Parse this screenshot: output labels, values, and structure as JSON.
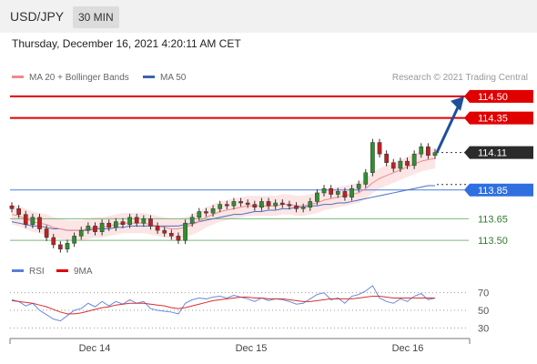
{
  "header": {
    "symbol": "USD/JPY",
    "timeframe": "30 MIN"
  },
  "timestamp": "Thursday, December 16, 2021 4:20:11 AM CET",
  "legend": {
    "ma20_label": "MA 20 + Bollinger Bands",
    "ma50_label": "MA 50"
  },
  "rsi_legend": {
    "rsi_label": "RSI",
    "ma_label": "9MA"
  },
  "credit": "Research © 2021 Trading Central",
  "colors": {
    "resistance": "#e00000",
    "support": "#4a7fe0",
    "target": "#1f4f9a",
    "ma20": "#f08a8a",
    "ma50": "#4a6fc0",
    "levels_green": "#7ab87a",
    "bands": "#fbe0e0"
  },
  "chart_data": {
    "type": "line",
    "price_levels": [
      {
        "value": 114.5,
        "label": "114.50",
        "kind": "resistance"
      },
      {
        "value": 114.35,
        "label": "114.35",
        "kind": "resistance"
      },
      {
        "value": 114.11,
        "label": "114.11",
        "kind": "last_price"
      },
      {
        "value": 113.85,
        "label": "113.85",
        "kind": "pivot"
      },
      {
        "value": 113.65,
        "label": "113.65",
        "kind": "support"
      },
      {
        "value": 113.5,
        "label": "113.50",
        "kind": "support"
      }
    ],
    "x_ticks": [
      "Dec 14",
      "Dec 15",
      "Dec 16"
    ],
    "price_range": [
      113.4,
      114.55
    ],
    "price_series": {
      "name": "Close",
      "values": [
        113.72,
        113.68,
        113.61,
        113.66,
        113.58,
        113.52,
        113.47,
        113.44,
        113.48,
        113.53,
        113.57,
        113.6,
        113.56,
        113.62,
        113.59,
        113.63,
        113.61,
        113.66,
        113.62,
        113.65,
        113.6,
        113.57,
        113.55,
        113.53,
        113.5,
        113.62,
        113.66,
        113.7,
        113.69,
        113.72,
        113.75,
        113.74,
        113.77,
        113.76,
        113.75,
        113.73,
        113.77,
        113.74,
        113.76,
        113.75,
        113.74,
        113.72,
        113.73,
        113.77,
        113.83,
        113.86,
        113.82,
        113.84,
        113.8,
        113.86,
        113.89,
        113.97,
        114.18,
        114.1,
        114.04,
        114.0,
        114.05,
        114.02,
        114.1,
        114.15,
        114.09,
        114.11
      ]
    },
    "ma20": [
      113.68,
      113.67,
      113.65,
      113.63,
      113.62,
      113.61,
      113.59,
      113.58,
      113.57,
      113.57,
      113.57,
      113.58,
      113.59,
      113.59,
      113.6,
      113.61,
      113.62,
      113.62,
      113.62,
      113.62,
      113.61,
      113.6,
      113.59,
      113.58,
      113.58,
      113.59,
      113.61,
      113.63,
      113.66,
      113.68,
      113.7,
      113.71,
      113.72,
      113.73,
      113.74,
      113.74,
      113.74,
      113.74,
      113.74,
      113.75,
      113.75,
      113.74,
      113.74,
      113.75,
      113.76,
      113.78,
      113.79,
      113.8,
      113.81,
      113.82,
      113.83,
      113.86,
      113.9,
      113.93,
      113.95,
      113.97,
      113.99,
      114.01,
      114.03,
      114.05,
      114.06,
      114.07
    ],
    "ma50": [
      113.63,
      113.62,
      113.61,
      113.6,
      113.6,
      113.59,
      113.58,
      113.58,
      113.57,
      113.57,
      113.57,
      113.57,
      113.58,
      113.58,
      113.58,
      113.59,
      113.59,
      113.6,
      113.6,
      113.6,
      113.6,
      113.6,
      113.6,
      113.6,
      113.6,
      113.61,
      113.62,
      113.63,
      113.64,
      113.65,
      113.66,
      113.67,
      113.68,
      113.68,
      113.69,
      113.7,
      113.7,
      113.71,
      113.71,
      113.72,
      113.72,
      113.73,
      113.73,
      113.74,
      113.74,
      113.75,
      113.75,
      113.76,
      113.76,
      113.77,
      113.78,
      113.79,
      113.8,
      113.81,
      113.82,
      113.83,
      113.84,
      113.85,
      113.86,
      113.87,
      113.88,
      113.88
    ],
    "rsi": {
      "levels": [
        70,
        50,
        30
      ],
      "range": [
        20,
        80
      ],
      "values": [
        62,
        60,
        55,
        58,
        50,
        45,
        40,
        38,
        44,
        50,
        52,
        58,
        54,
        60,
        55,
        60,
        57,
        62,
        58,
        60,
        52,
        50,
        49,
        48,
        46,
        58,
        62,
        64,
        63,
        65,
        66,
        64,
        67,
        65,
        63,
        60,
        64,
        61,
        63,
        62,
        60,
        57,
        58,
        63,
        68,
        70,
        62,
        64,
        58,
        66,
        68,
        72,
        78,
        64,
        60,
        58,
        63,
        60,
        66,
        69,
        62,
        64
      ],
      "ma": [
        61,
        60,
        59,
        58,
        56,
        54,
        51,
        48,
        46,
        46,
        47,
        49,
        51,
        53,
        54,
        56,
        57,
        58,
        58,
        58,
        57,
        56,
        55,
        53,
        52,
        53,
        55,
        57,
        59,
        61,
        62,
        63,
        64,
        65,
        65,
        64,
        64,
        63,
        63,
        63,
        62,
        61,
        60,
        60,
        61,
        62,
        63,
        63,
        63,
        63,
        64,
        65,
        66,
        66,
        65,
        64,
        64,
        64,
        64,
        64,
        64,
        64
      ]
    }
  }
}
